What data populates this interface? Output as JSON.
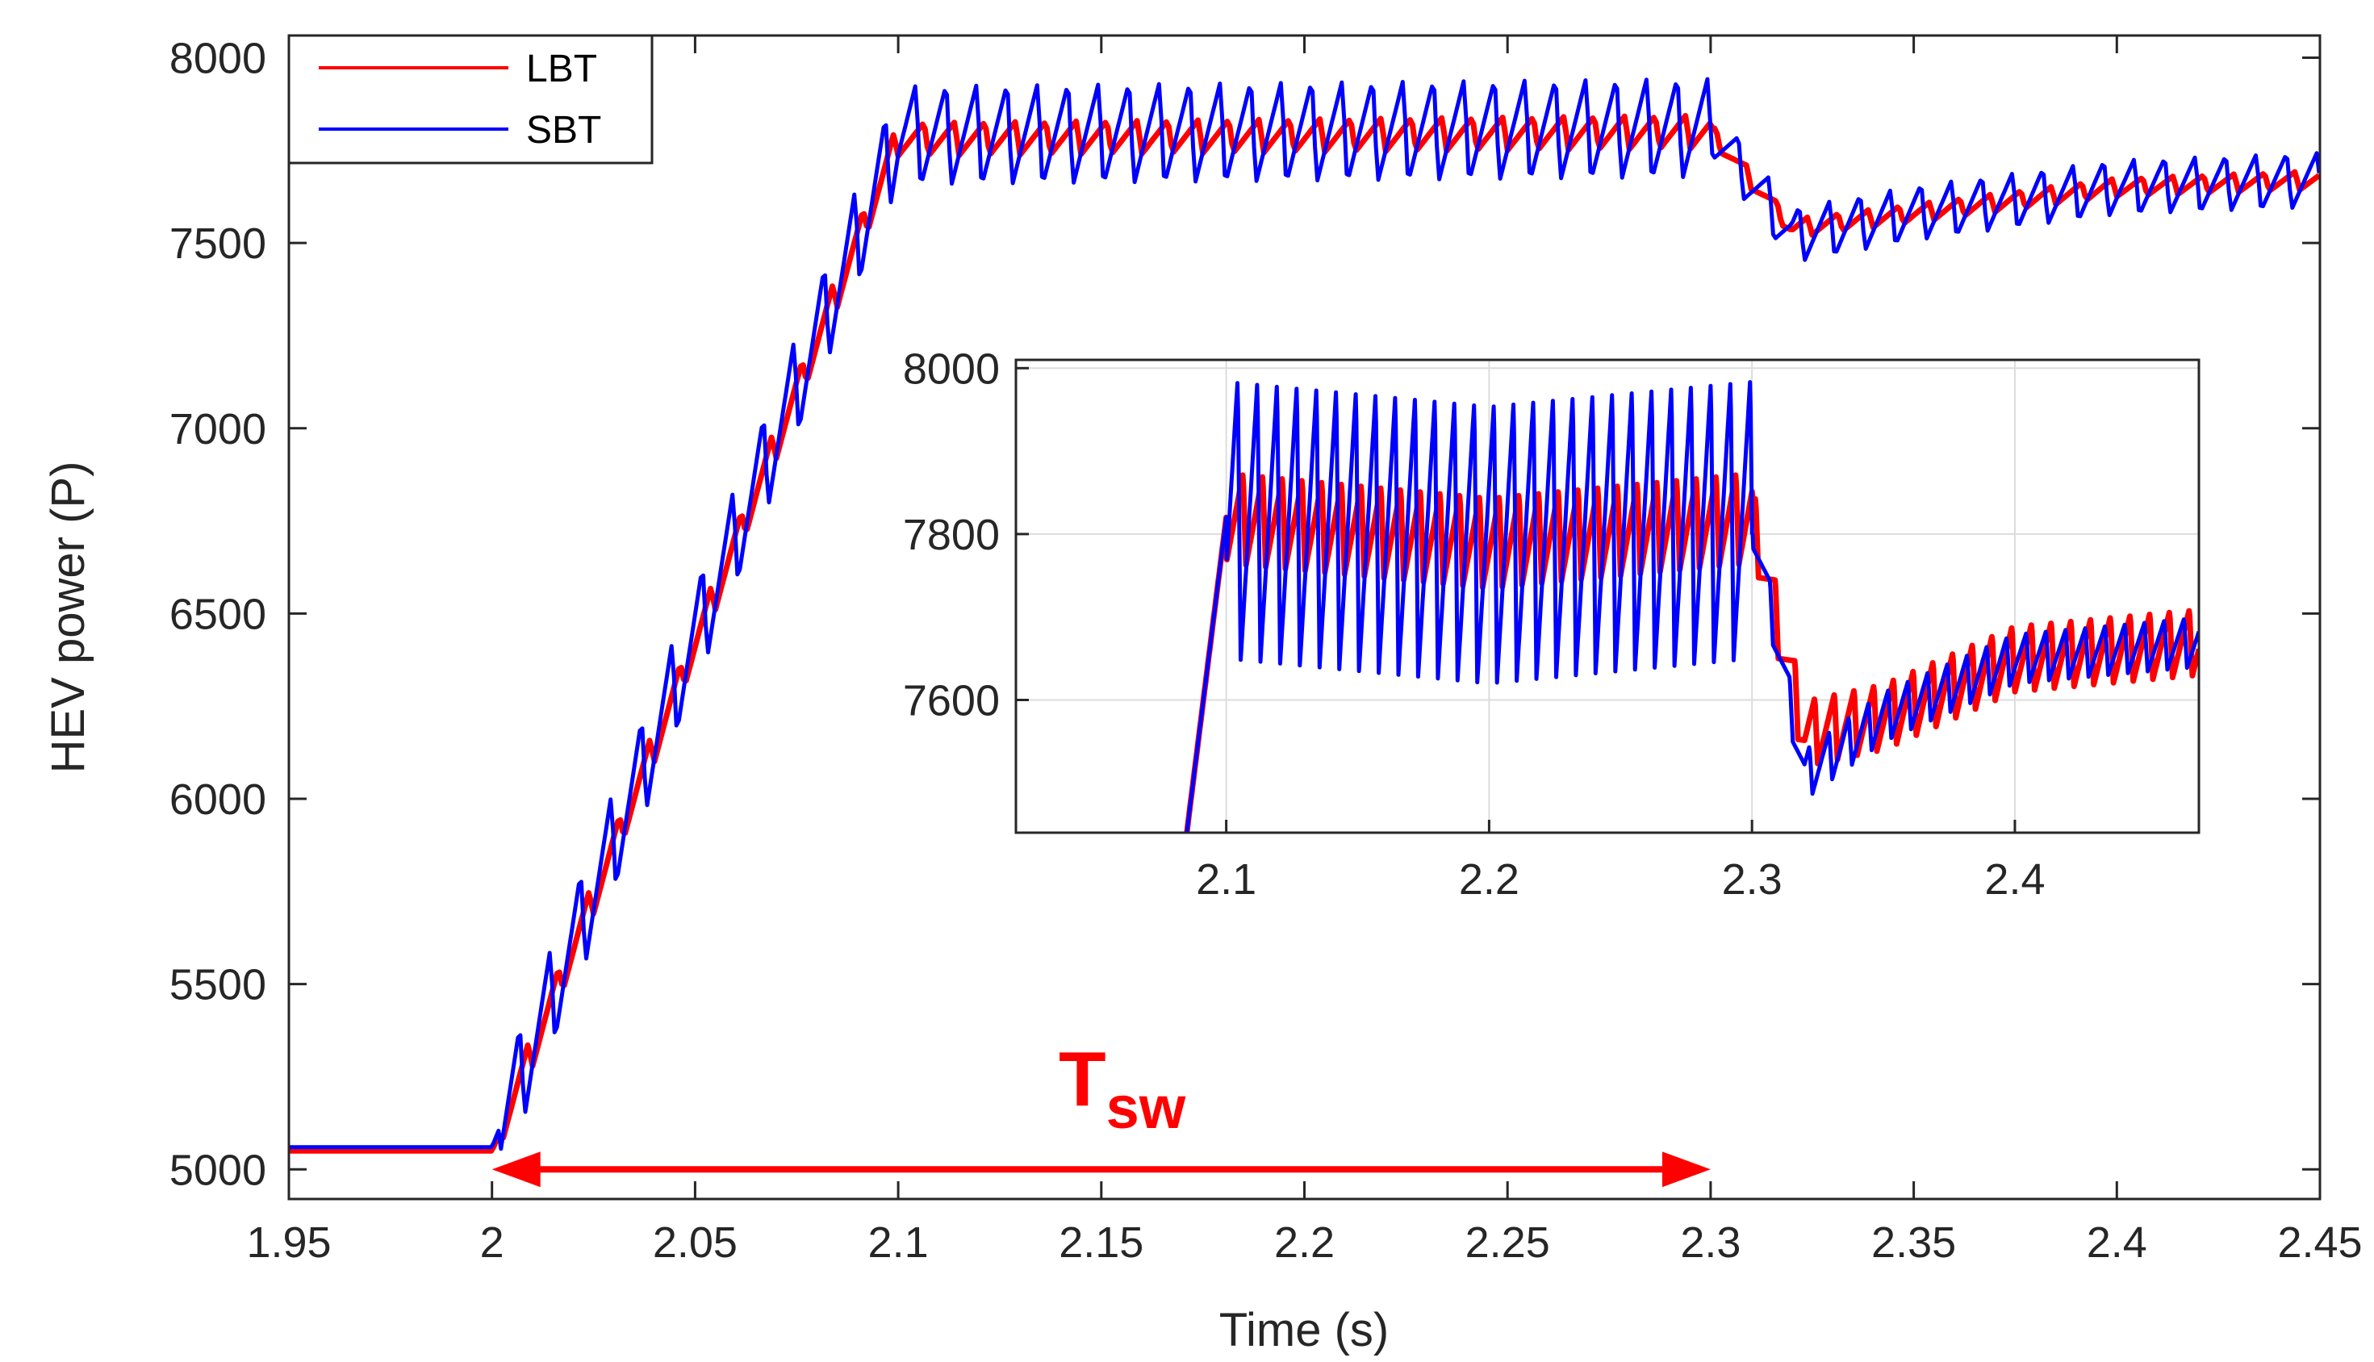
{
  "chart_data": [
    {
      "id": "main",
      "type": "line",
      "title": "",
      "xlabel": "Time (s)",
      "ylabel": "HEV power (P)",
      "xlim": [
        1.95,
        2.45
      ],
      "ylim": [
        4920,
        8060
      ],
      "xticks": [
        1.95,
        2.0,
        2.05,
        2.1,
        2.15,
        2.2,
        2.25,
        2.3,
        2.35,
        2.4,
        2.45
      ],
      "xtick_labels": [
        "1.95",
        "2",
        "2.05",
        "2.1",
        "2.15",
        "2.2",
        "2.25",
        "2.3",
        "2.35",
        "2.4",
        "2.45"
      ],
      "yticks": [
        5000,
        5500,
        6000,
        6500,
        7000,
        7500,
        8000
      ],
      "ytick_labels": [
        "5000",
        "5500",
        "6000",
        "6500",
        "7000",
        "7500",
        "8000"
      ],
      "grid": false,
      "legend": {
        "position": "top-left",
        "entries": [
          "LBT",
          "SBT"
        ]
      },
      "series": [
        {
          "name": "LBT",
          "color": "#ff0000",
          "ripple_amplitude": 45,
          "x": [
            1.95,
            2.0,
            2.05,
            2.1,
            2.3,
            2.32,
            2.35,
            2.4,
            2.45
          ],
          "values": [
            5050,
            5050,
            6420,
            7780,
            7800,
            7540,
            7580,
            7650,
            7670
          ]
        },
        {
          "name": "SBT",
          "color": "#0000ff",
          "ripple_amplitude": 140,
          "x": [
            1.95,
            2.0,
            2.05,
            2.1,
            2.3,
            2.32,
            2.35,
            2.4,
            2.45
          ],
          "values": [
            5060,
            5060,
            6440,
            7790,
            7810,
            7520,
            7580,
            7650,
            7670
          ]
        }
      ],
      "annotations": [
        {
          "text": "T",
          "subscript": "sw",
          "color": "#ff0000",
          "arrow_from": 2.0,
          "arrow_to": 2.3,
          "arrow_y": 5000
        }
      ]
    },
    {
      "id": "inset",
      "type": "line",
      "title": "",
      "xlabel": "",
      "ylabel": "",
      "xlim": [
        2.02,
        2.47
      ],
      "ylim": [
        7440,
        8010
      ],
      "xticks": [
        2.1,
        2.2,
        2.3,
        2.4
      ],
      "xtick_labels": [
        "2.1",
        "2.2",
        "2.3",
        "2.4"
      ],
      "yticks": [
        7600,
        7800,
        8000
      ],
      "ytick_labels": [
        "7600",
        "7800",
        "8000"
      ],
      "grid": true,
      "series": [
        {
          "name": "LBT",
          "color": "#ff0000",
          "x": [
            2.085,
            2.1,
            2.2,
            2.3,
            2.32,
            2.35,
            2.4,
            2.47
          ],
          "values": [
            7440,
            7820,
            7790,
            7820,
            7560,
            7580,
            7650,
            7670
          ]
        },
        {
          "name": "SBT",
          "color": "#0000ff",
          "x": [
            2.085,
            2.1,
            2.2,
            2.3,
            2.32,
            2.35,
            2.4,
            2.47
          ],
          "values": [
            7440,
            7820,
            7790,
            7820,
            7510,
            7580,
            7650,
            7670
          ]
        }
      ]
    }
  ]
}
